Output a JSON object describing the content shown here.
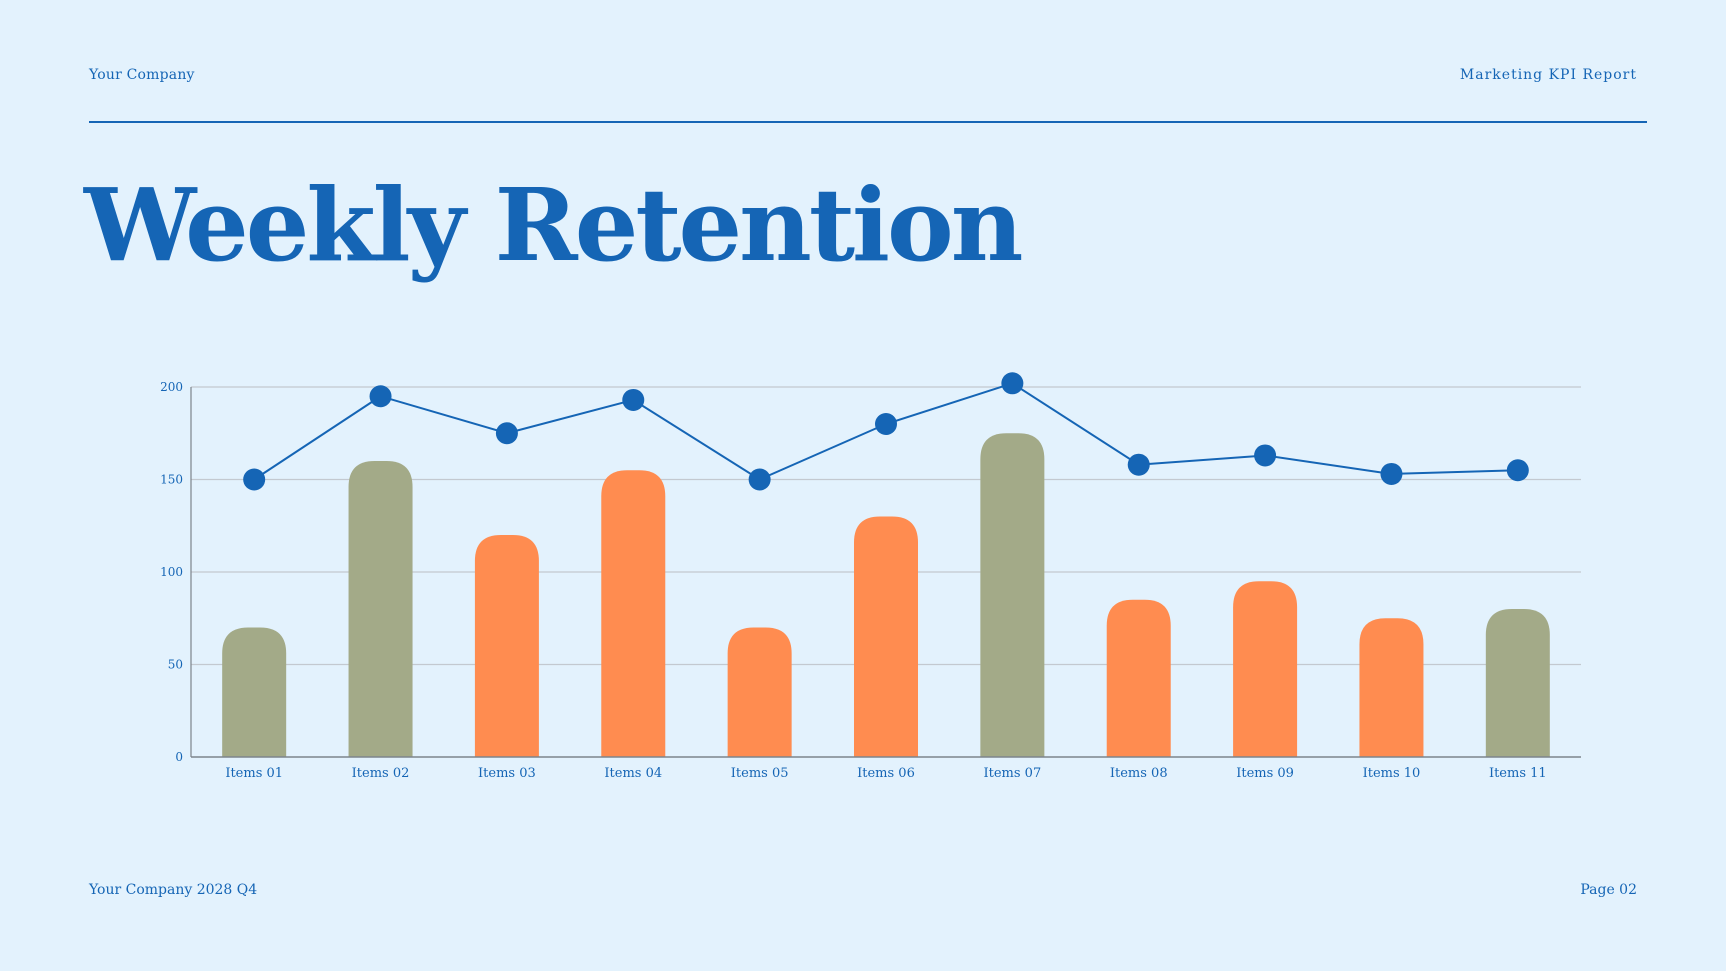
{
  "header": {
    "company": "Your Company",
    "report": "Marketing KPI Report"
  },
  "title": "Weekly Retention",
  "footer": {
    "left": "Your Company 2028 Q4",
    "right": "Page 02"
  },
  "colors": {
    "background": "#e3f2fd",
    "primary": "#1565b5",
    "bar_green": "#a3aa88",
    "bar_orange": "#ff8c50",
    "grid": "#c3c9d0",
    "axis": "#7d848c"
  },
  "chart_data": {
    "type": "bar",
    "categories": [
      "Items 01",
      "Items 02",
      "Items 03",
      "Items 04",
      "Items 05",
      "Items 06",
      "Items 07",
      "Items 08",
      "Items 09",
      "Items 10",
      "Items 11"
    ],
    "series": [
      {
        "type": "bar",
        "values": [
          70,
          160,
          120,
          155,
          70,
          130,
          175,
          85,
          95,
          75,
          80
        ],
        "colors": [
          "#a3aa88",
          "#a3aa88",
          "#ff8c50",
          "#ff8c50",
          "#ff8c50",
          "#ff8c50",
          "#a3aa88",
          "#ff8c50",
          "#ff8c50",
          "#ff8c50",
          "#a3aa88"
        ]
      },
      {
        "type": "line",
        "values": [
          150,
          195,
          175,
          193,
          150,
          180,
          202,
          158,
          163,
          153,
          155
        ],
        "color": "#1565b5"
      }
    ],
    "ylim": [
      0,
      200
    ],
    "yticks": [
      0,
      50,
      100,
      150,
      200
    ],
    "grid": true,
    "xlabel": "",
    "ylabel": ""
  }
}
